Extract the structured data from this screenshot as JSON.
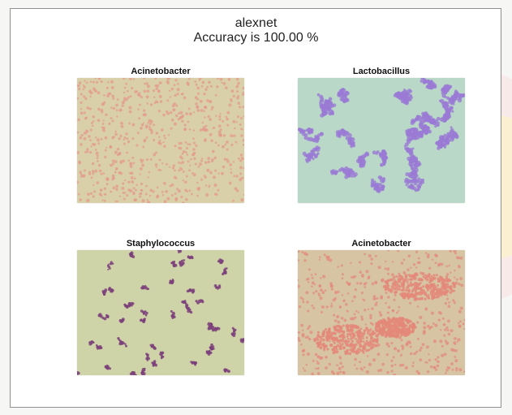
{
  "figure": {
    "model_name": "alexnet",
    "accuracy_text": "Accuracy is 100.00 %"
  },
  "panels": [
    {
      "label": "Acinetobacter",
      "bg": "#d9cfa8",
      "dot": "#e39a8c",
      "shape": "small-rods"
    },
    {
      "label": "Lactobacillus",
      "bg": "#b9d8c8",
      "dot": "#9a7ad4",
      "shape": "clusters"
    },
    {
      "label": "Staphylococcus",
      "bg": "#cfd3a8",
      "dot": "#7b3f7a",
      "shape": "sparse-dots"
    },
    {
      "label": "Acinetobacter",
      "bg": "#d6c4a2",
      "dot": "#e4887a",
      "shape": "dense-patches"
    }
  ]
}
